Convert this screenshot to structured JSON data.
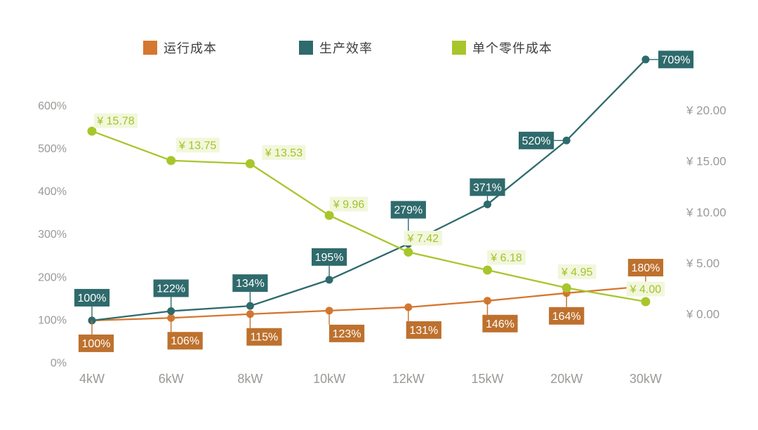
{
  "legend": {
    "items": [
      {
        "label": "运行成本",
        "color": "#D4772F"
      },
      {
        "label": "生产效率",
        "color": "#2F6A6C"
      },
      {
        "label": "单个零件成本",
        "color": "#A7C62B"
      }
    ]
  },
  "chart_data": {
    "type": "line",
    "title": "",
    "categories": [
      "4kW",
      "6kW",
      "8kW",
      "10kW",
      "12kW",
      "15kW",
      "20kW",
      "30kW"
    ],
    "left_axis": {
      "unit": "%",
      "min": 0,
      "max": 600,
      "tick_values": [
        0,
        100,
        200,
        300,
        400,
        500,
        600
      ],
      "tick_labels": [
        "0%",
        "100%",
        "200%",
        "300%",
        "400%",
        "500%",
        "600%"
      ]
    },
    "right_axis": {
      "unit": "¥",
      "min": 0,
      "max": 20,
      "tick_values": [
        0,
        5,
        10,
        15,
        20
      ],
      "tick_labels": [
        "¥ 0.00",
        "¥ 5.00",
        "¥ 10.00",
        "¥ 15.00",
        "¥ 20.00"
      ]
    },
    "grid": false,
    "legend_position": "top",
    "series": [
      {
        "name": "运行成本",
        "axis": "left",
        "color": "#D4772F",
        "label_bg": "#BE712E",
        "label_color": "#ffffff",
        "values": [
          100,
          106,
          115,
          123,
          131,
          146,
          164,
          180
        ],
        "labels": [
          "100%",
          "106%",
          "115%",
          "123%",
          "131%",
          "146%",
          "164%",
          "180%"
        ],
        "placements": [
          "below",
          "below",
          "below",
          "below",
          "below",
          "below",
          "below",
          "above"
        ]
      },
      {
        "name": "生产效率",
        "axis": "left",
        "color": "#2F6A6C",
        "label_bg": "#2F6A6C",
        "label_color": "#ffffff",
        "values": [
          100,
          122,
          134,
          195,
          279,
          371,
          520,
          709
        ],
        "labels": [
          "100%",
          "122%",
          "134%",
          "195%",
          "279%",
          "371%",
          "520%",
          "709%"
        ],
        "placements": [
          "above",
          "above",
          "above",
          "above",
          "above",
          "above",
          "left",
          "right"
        ]
      },
      {
        "name": "单个零件成本",
        "axis": "right",
        "color": "#A7C62B",
        "label_bg": "#F2F7DC",
        "label_color": "#A3C32C",
        "values": [
          15.78,
          13.75,
          13.53,
          9.96,
          7.42,
          6.18,
          4.95,
          4.0
        ],
        "labels": [
          "¥ 15.78",
          "¥ 13.75",
          "¥ 13.53",
          "¥ 9.96",
          "¥ 7.42",
          "¥ 6.18",
          "¥ 4.95",
          "¥ 4.00"
        ],
        "placements": [
          "float",
          "float",
          "float",
          "float",
          "float",
          "float",
          "float",
          "float"
        ]
      }
    ]
  }
}
